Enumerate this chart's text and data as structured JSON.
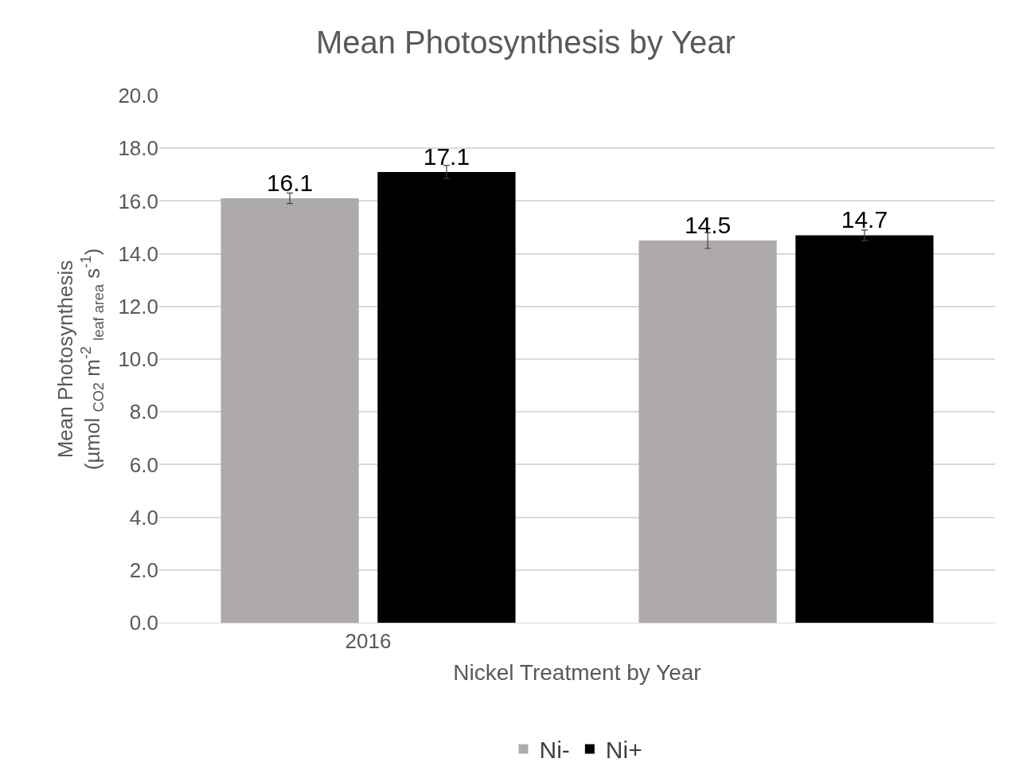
{
  "chart_data": {
    "type": "bar",
    "title": "Mean Photosynthesis by Year",
    "xlabel": "Nickel Treatment by Year",
    "ylabel": "Mean Photosynthesis\n(µmol $_{CO2}$ m$^{-2}$ $_{leaf area}$ s$^{-1}$)",
    "categories": [
      "2016",
      null
    ],
    "series": [
      {
        "name": "Ni-",
        "color": "#aeaaaa",
        "values": [
          16.1,
          14.5
        ],
        "errors": [
          0.2,
          0.3
        ]
      },
      {
        "name": "Ni+",
        "color": "#000000",
        "values": [
          17.1,
          14.7
        ],
        "errors": [
          0.25,
          0.2
        ]
      }
    ],
    "ylim": [
      0,
      20
    ],
    "yticks": [
      {
        "value": 0,
        "label": "0.0"
      },
      {
        "value": 2,
        "label": "2.0"
      },
      {
        "value": 4,
        "label": "4.0"
      },
      {
        "value": 6,
        "label": "6.0"
      },
      {
        "value": 8,
        "label": "8.0"
      },
      {
        "value": 10,
        "label": "10.0"
      },
      {
        "value": 12,
        "label": "12.0"
      },
      {
        "value": 14,
        "label": "14.0"
      },
      {
        "value": 16,
        "label": "16.0"
      },
      {
        "value": 18,
        "label": "18.0"
      },
      {
        "value": 20,
        "label": "20.0"
      }
    ],
    "data_labels": true,
    "grid": "y",
    "legend": "bottom"
  }
}
